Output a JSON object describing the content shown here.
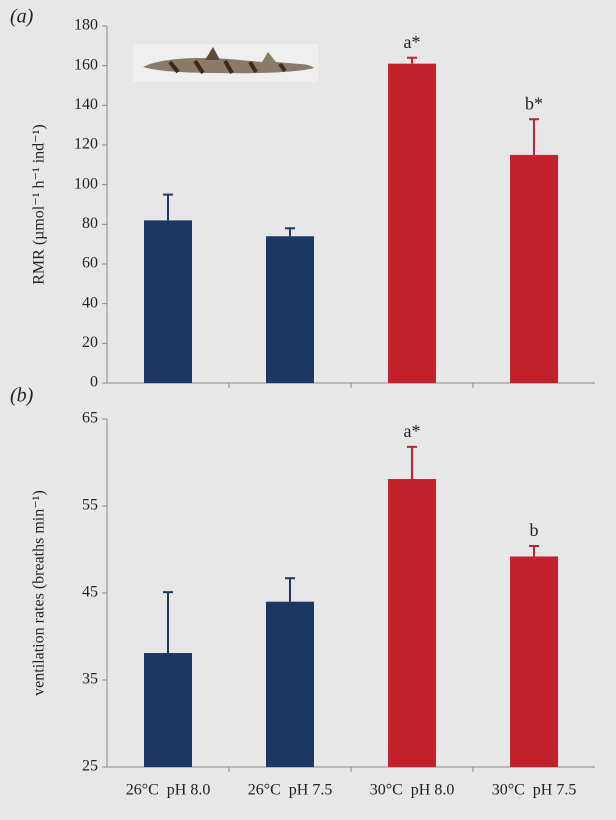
{
  "chart_data": [
    {
      "type": "bar",
      "panel_label": "(a)",
      "ylabel": "RMR (µmol⁻¹ h⁻¹ ind⁻¹)",
      "values": [
        82,
        74,
        161,
        115
      ],
      "errors": [
        13,
        4,
        3,
        18
      ],
      "colors": [
        "#1c3763",
        "#1c3763",
        "#c1222b",
        "#c1222b"
      ],
      "bar_labels": [
        null,
        null,
        "a*",
        "b*"
      ],
      "ylim": [
        0,
        180
      ],
      "yticks": [
        0,
        20,
        40,
        60,
        80,
        100,
        120,
        140,
        160,
        180
      ]
    },
    {
      "type": "bar",
      "panel_label": "(b)",
      "ylabel": "ventilation rates (breaths min⁻¹)",
      "categories": [
        "26°C  pH 8.0",
        "26°C  pH 7.5",
        "30°C  pH 8.0",
        "30°C  pH 7.5"
      ],
      "values": [
        38.1,
        44,
        58.1,
        49.2
      ],
      "errors": [
        7,
        2.7,
        3.7,
        1.2
      ],
      "colors": [
        "#1c3763",
        "#1c3763",
        "#c1222b",
        "#c1222b"
      ],
      "bar_labels": [
        null,
        null,
        "a*",
        "b"
      ],
      "ylim": [
        25,
        65
      ],
      "yticks": [
        25,
        35,
        45,
        55,
        65
      ]
    }
  ]
}
